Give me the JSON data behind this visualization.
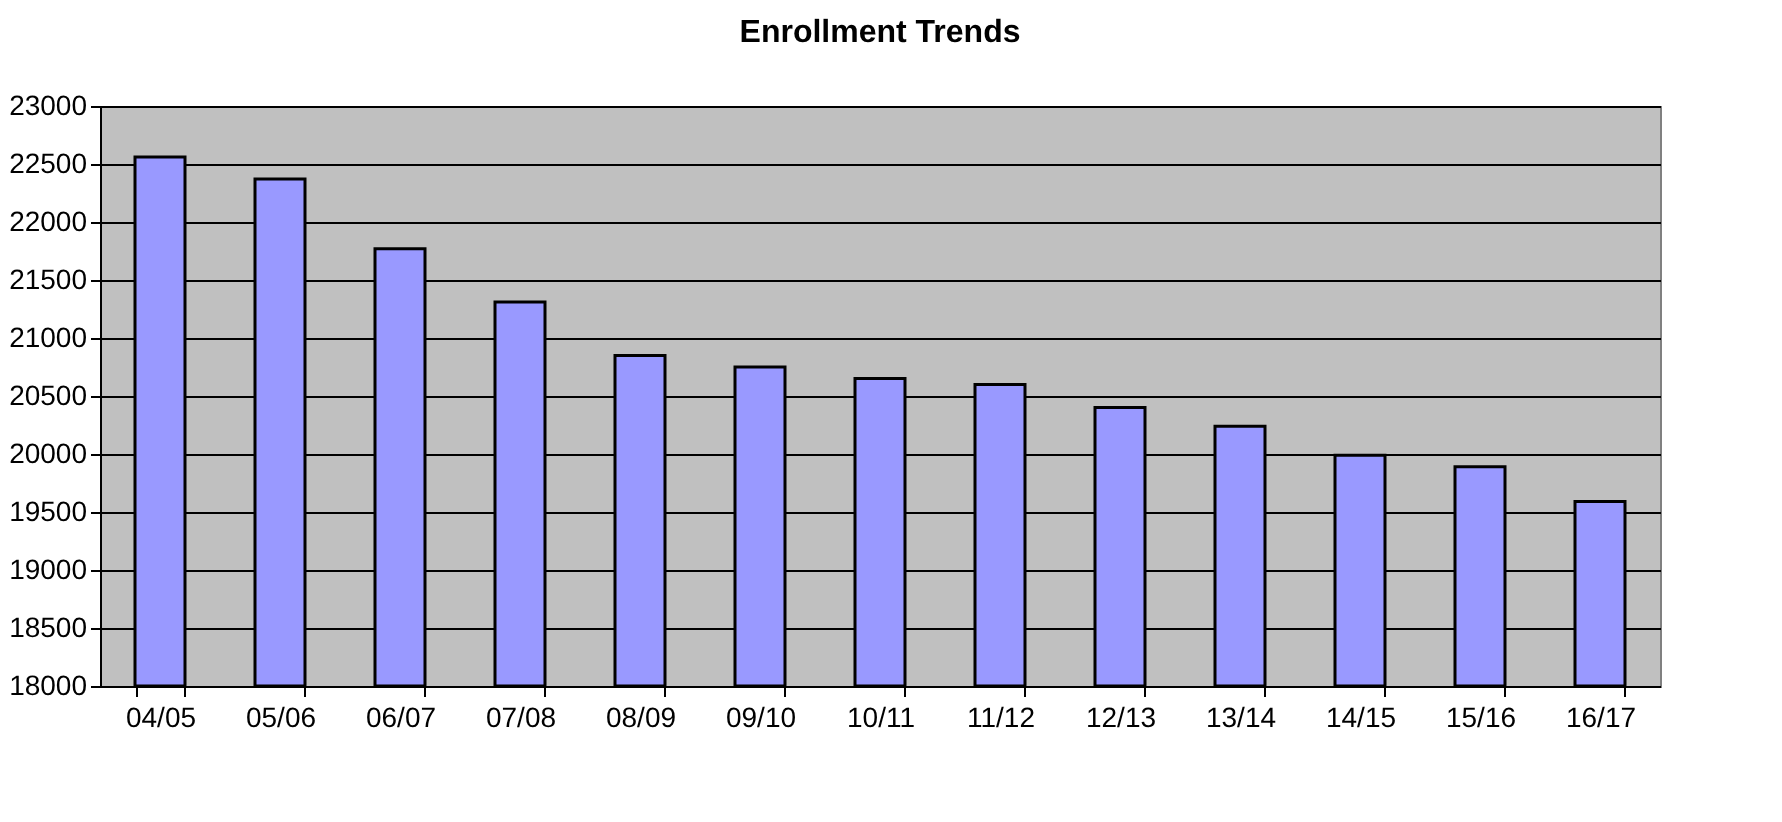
{
  "chart_data": {
    "type": "bar",
    "title": "Enrollment Trends",
    "categories": [
      "04/05",
      "05/06",
      "06/07",
      "07/08",
      "08/09",
      "09/10",
      "10/11",
      "11/12",
      "12/13",
      "13/14",
      "14/15",
      "15/16",
      "16/17"
    ],
    "values": [
      22560,
      22370,
      21770,
      21310,
      20850,
      20750,
      20650,
      20600,
      20400,
      20240,
      19990,
      19890,
      19590
    ],
    "color": "#9999ff",
    "ylim": [
      18000,
      23000
    ],
    "yticks": [
      18000,
      18500,
      19000,
      19500,
      20000,
      20500,
      21000,
      21500,
      22000,
      22500,
      23000
    ],
    "grid": "y"
  }
}
